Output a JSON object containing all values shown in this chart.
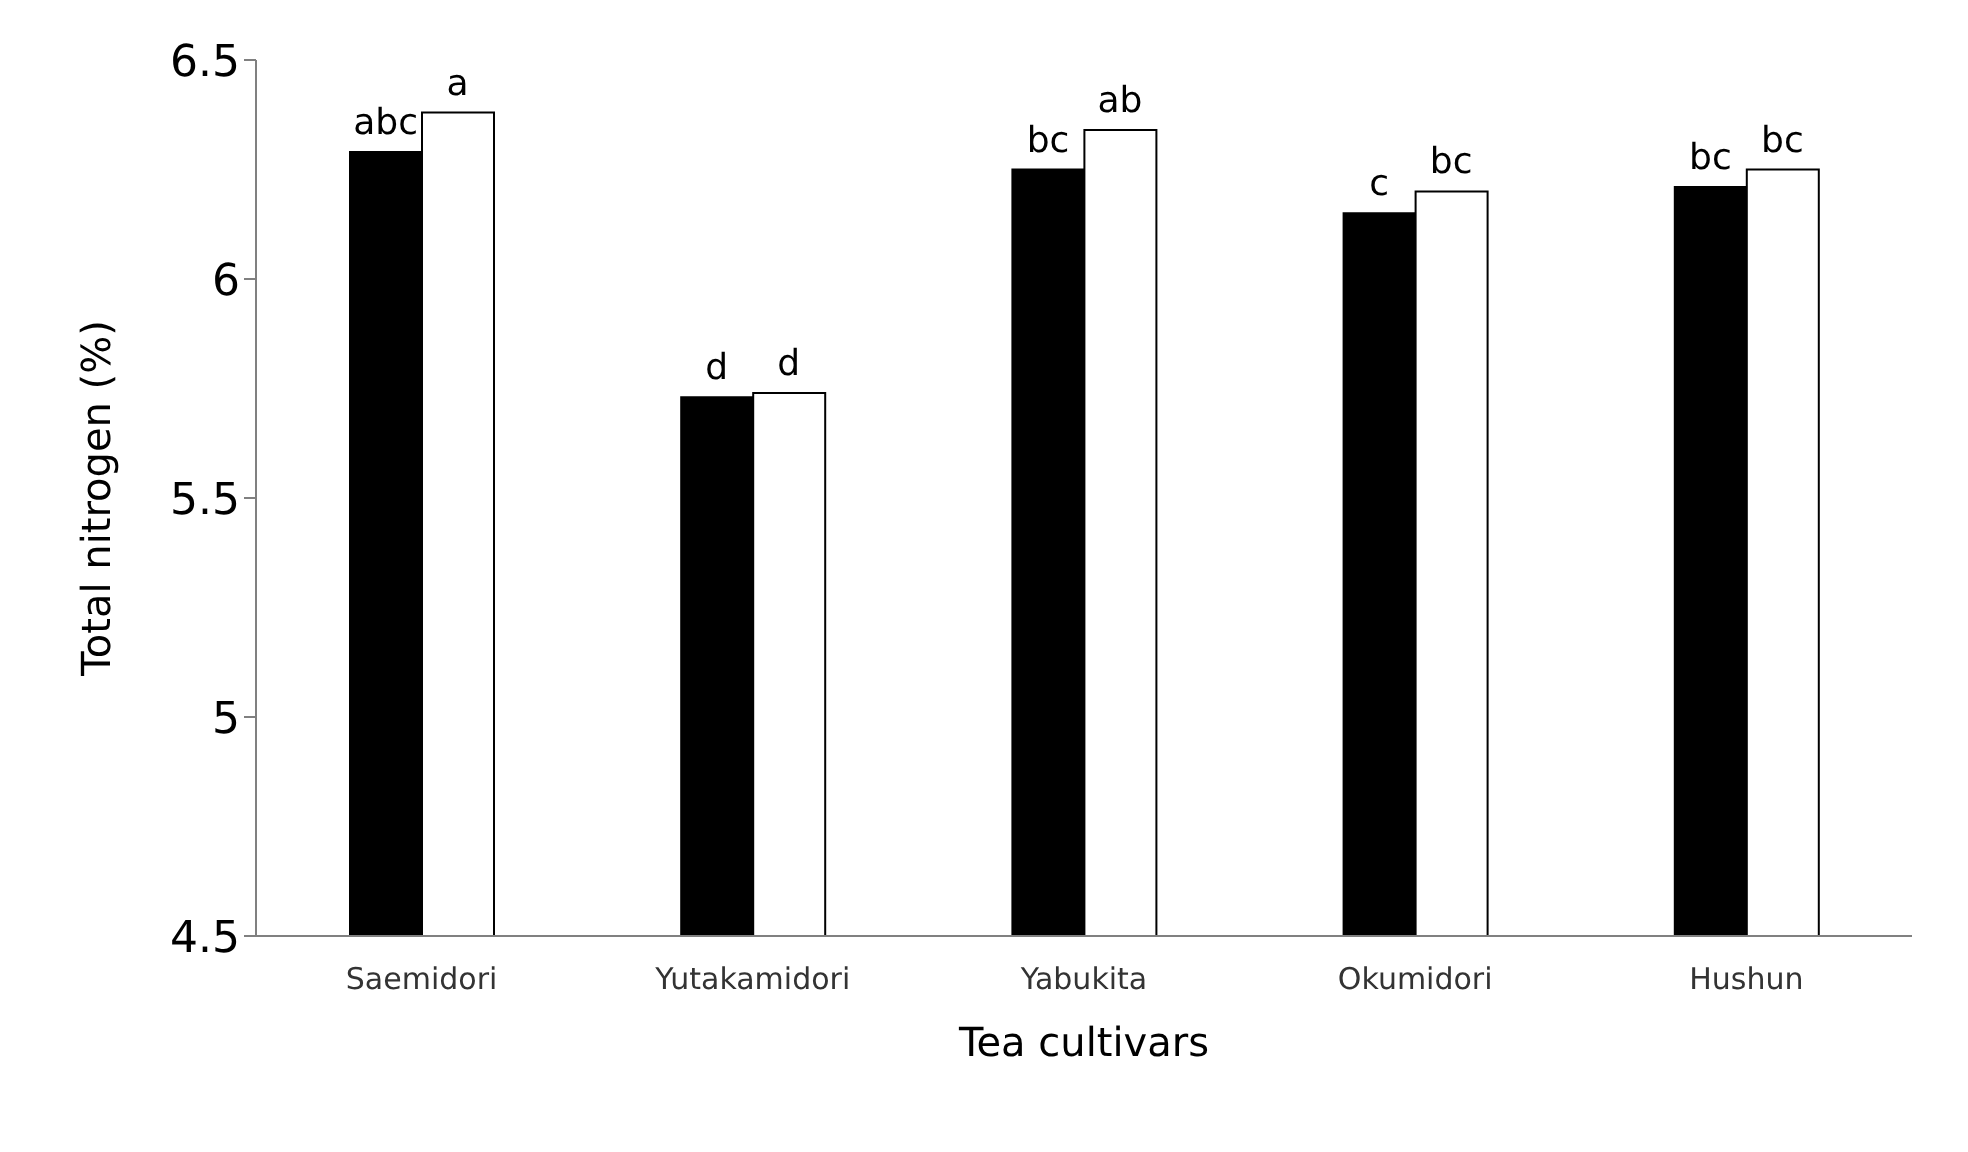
{
  "chart_data": {
    "type": "bar",
    "xlabel": "Tea cultivars",
    "ylabel": "Total nitrogen (%)",
    "categories": [
      "Saemidori",
      "Yutakamidori",
      "Yabukita",
      "Okumidori",
      "Hushun"
    ],
    "series": [
      {
        "color": "#000000",
        "values": [
          6.29,
          5.73,
          6.25,
          6.15,
          6.21
        ]
      },
      {
        "color": "#ffffff",
        "values": [
          6.38,
          5.74,
          6.34,
          6.2,
          6.25
        ]
      }
    ],
    "ylim": [
      4.5,
      6.5
    ],
    "yticks": [
      4.5,
      5,
      5.5,
      6,
      6.5
    ],
    "grid": false,
    "legend": false,
    "annotations": [
      {
        "text": "abc",
        "x": "Saemidori",
        "y": 6.29
      },
      {
        "text": "a",
        "x": "Saemidori",
        "y": 6.38
      },
      {
        "text": "d",
        "x": "Yutakamidori",
        "y": 5.73
      },
      {
        "text": "d",
        "x": "Yutakamidori",
        "y": 5.74
      },
      {
        "text": "bc",
        "x": "Yabukita",
        "y": 6.25
      },
      {
        "text": "ab",
        "x": "Yabukita",
        "y": 6.34
      },
      {
        "text": "c",
        "x": "Okumidori",
        "y": 6.15
      },
      {
        "text": "bc",
        "x": "Okumidori",
        "y": 6.2
      },
      {
        "text": "bc",
        "x": "Hushun",
        "y": 6.21
      },
      {
        "text": "bc",
        "x": "Hushun",
        "y": 6.25
      }
    ]
  }
}
